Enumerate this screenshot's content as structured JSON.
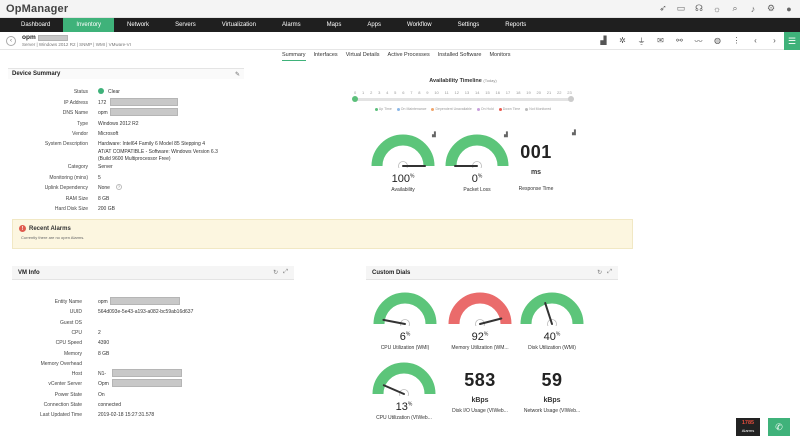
{
  "app": {
    "brand": "OpManager"
  },
  "topbar": {
    "icons": [
      "rocket-icon",
      "monitor-icon",
      "headset-icon",
      "lightbulb-icon",
      "search-icon",
      "bell-icon",
      "gear-icon",
      "user-icon"
    ]
  },
  "nav": [
    "Dashboard",
    "Inventory",
    "Network",
    "Servers",
    "Virtualization",
    "Alarms",
    "Maps",
    "Apps",
    "Workflow",
    "Settings",
    "Reports"
  ],
  "nav_active": 1,
  "device": {
    "name": "opm",
    "subtitle": "Server | Windows 2012 R2 | SNMP | WMI | VMware-VI"
  },
  "tabs": [
    "Summary",
    "Interfaces",
    "Virtual Details",
    "Active Processes",
    "Installed Software",
    "Monitors"
  ],
  "tab_active": 0,
  "summary": {
    "title": "Device Summary",
    "rows": [
      {
        "label": "Status",
        "value": "Clear"
      },
      {
        "label": "IP Address",
        "value": "172"
      },
      {
        "label": "DNS Name",
        "value": "opm"
      },
      {
        "label": "Type",
        "value": "Windows 2012 R2"
      },
      {
        "label": "Vendor",
        "value": "Microsoft"
      },
      {
        "label": "System Description",
        "value": "Hardware: Intel64 Family 6 Model 85 Stepping 4"
      },
      {
        "label": "",
        "value": "AT/AT COMPATIBLE - Software: Windows Version 6.3"
      },
      {
        "label": "",
        "value": "(Build 9600 Multiprocessor Free)"
      },
      {
        "label": "Category",
        "value": "Server"
      },
      {
        "label": "Monitoring (mins)",
        "value": "5"
      },
      {
        "label": "Uplink Dependency",
        "value": "None"
      },
      {
        "label": "RAM Size",
        "value": "8 GB"
      },
      {
        "label": "Hard Disk Size",
        "value": "200 GB"
      }
    ]
  },
  "timeline": {
    "title": "Availability Timeline",
    "period": "(Today)",
    "ticks": [
      "0",
      "1",
      "2",
      "3",
      "4",
      "5",
      "6",
      "7",
      "8",
      "9",
      "10",
      "11",
      "12",
      "13",
      "14",
      "15",
      "16",
      "17",
      "18",
      "19",
      "20",
      "21",
      "22",
      "23"
    ],
    "legend": [
      "Up Time",
      "On Maintenance",
      "Dependent Unavailable",
      "On Hold",
      "Down Time",
      "Not Monitored"
    ],
    "legend_colors": [
      "#5bbf7a",
      "#8bb8e8",
      "#f0a46a",
      "#c9a0dc",
      "#e85a4f",
      "#bbbbbb"
    ]
  },
  "gauges_top": [
    {
      "value": "100",
      "unit": "%",
      "label": "Availability",
      "level": 1.0
    },
    {
      "value": "0",
      "unit": "%",
      "label": "Packet Loss",
      "level": 0.0
    }
  ],
  "response": {
    "value": "001",
    "unit": "ms",
    "label": "Response Time"
  },
  "alarms": {
    "title": "Recent Alarms",
    "message": "Currently there are no open Alarms."
  },
  "vm": {
    "title": "VM Info",
    "rows": [
      {
        "label": "Entity Name",
        "value": "opm"
      },
      {
        "label": "UUID",
        "value": "564d093e-5e43-a193-a082-bc59ab16d637"
      },
      {
        "label": "Guest OS",
        "value": ""
      },
      {
        "label": "CPU",
        "value": "2"
      },
      {
        "label": "CPU Speed",
        "value": "4390"
      },
      {
        "label": "Memory",
        "value": "8 GB"
      },
      {
        "label": "Memory Overhead",
        "value": ""
      },
      {
        "label": "Host",
        "value": "N1-"
      },
      {
        "label": "vCenter Server",
        "value": "Opm"
      },
      {
        "label": "Power State",
        "value": "On"
      },
      {
        "label": "Connection State",
        "value": "connected"
      },
      {
        "label": "Last Updated Time",
        "value": "2019-02-18 15:27:31.578"
      }
    ]
  },
  "custom_dials": {
    "title": "Custom Dials",
    "dials": [
      {
        "value": "6",
        "unit": "%",
        "label": "CPU Utilization (WMI)",
        "level": 0.06,
        "color": "#5cc57a"
      },
      {
        "value": "92",
        "unit": "%",
        "label": "Memory Utilization (WM...",
        "level": 0.92,
        "color": "#ea6b6b"
      },
      {
        "value": "40",
        "unit": "%",
        "label": "Disk Utilization (WMI)",
        "level": 0.4,
        "color": "#5cc57a"
      },
      {
        "value": "13",
        "unit": "%",
        "label": "CPU Utilization (VIWeb...",
        "level": 0.13,
        "color": "#5cc57a"
      }
    ],
    "numbers": [
      {
        "value": "583",
        "unit": "kBps",
        "label": "Disk I/O Usage (VIWeb..."
      },
      {
        "value": "59",
        "unit": "kBps",
        "label": "Network Usage (VIWeb..."
      }
    ]
  },
  "badge": {
    "count": "1785",
    "label": "Alarms"
  }
}
